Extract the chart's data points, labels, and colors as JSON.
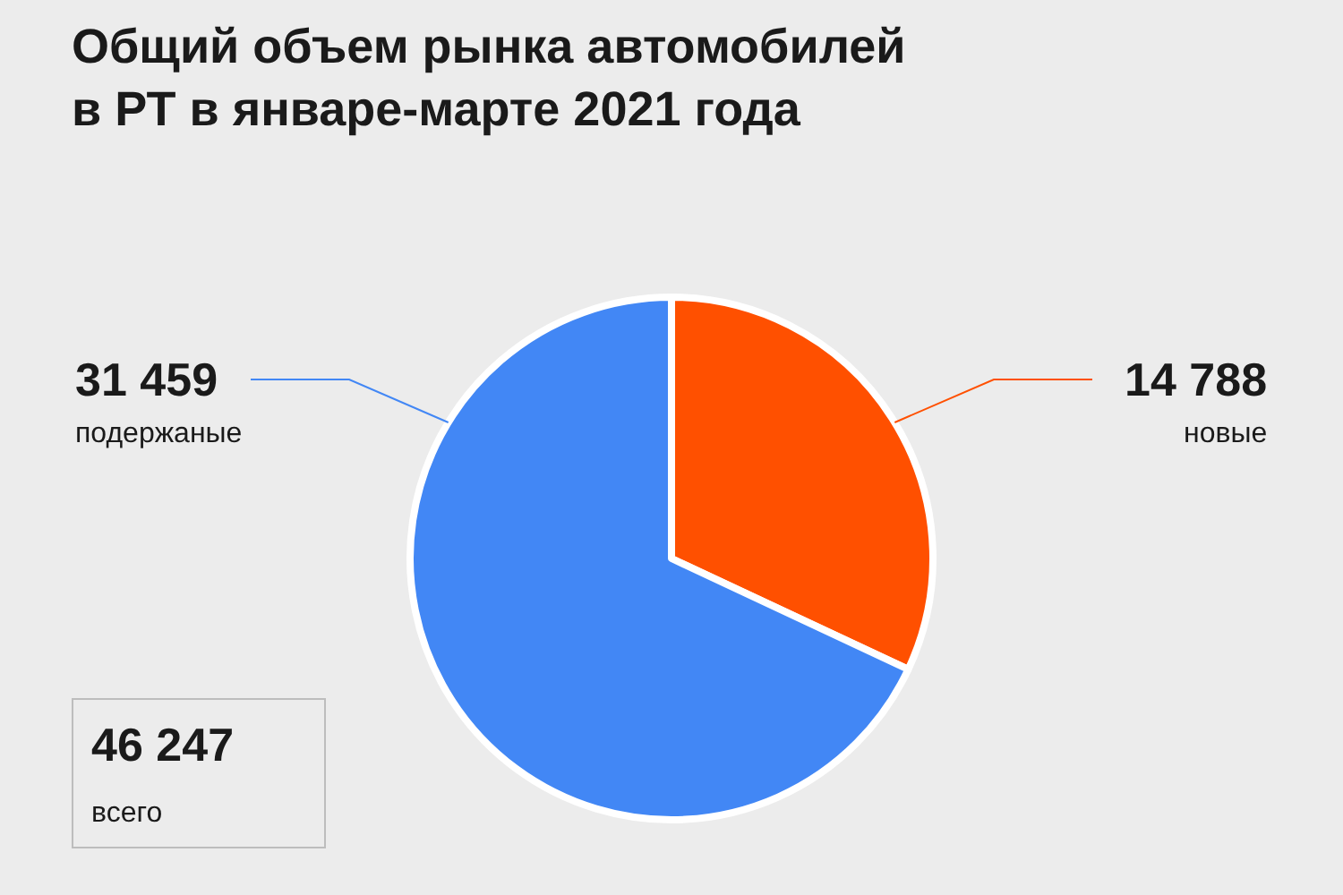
{
  "chart_data": {
    "type": "pie",
    "title": "Общий объем рынка автомобилей\nв РТ в январе-марте 2021 года",
    "categories": [
      "новые",
      "подержаные"
    ],
    "values": [
      14788,
      31459
    ],
    "colors": [
      "#ff5000",
      "#4287f5"
    ],
    "value_labels": [
      "14 788",
      "31 459"
    ],
    "annotations": [
      "46 247\nвсего"
    ],
    "legend": false
  }
}
